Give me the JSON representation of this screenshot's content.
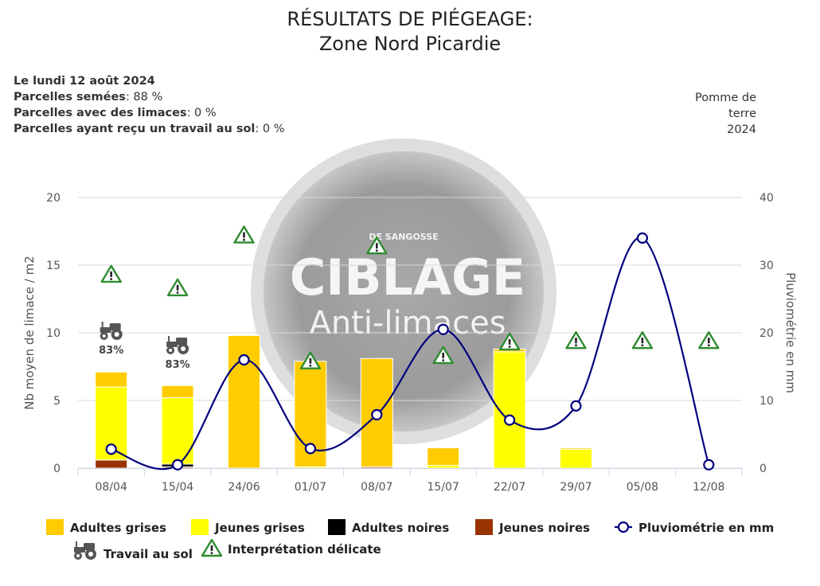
{
  "header": {
    "title_line1": "RÉSULTATS DE PIÉGEAGE:",
    "title_line2": "Zone Nord Picardie"
  },
  "info": {
    "date": "Le lundi 12 août 2024",
    "sown_label": "Parcelles semées",
    "sown_value": ": 88 %",
    "slugs_label": "Parcelles avec des limaces",
    "slugs_value": ": 0 %",
    "soilwork_label": "Parcelles ayant reçu un travail au sol",
    "soilwork_value": ": 0 %"
  },
  "crop": {
    "line1": "Pomme de",
    "line2": "terre",
    "line3": "2024"
  },
  "watermark": {
    "brand": "DE SANGOSSE",
    "line1": "CIBLAGE",
    "line2": "Anti-limaces"
  },
  "chart_data": {
    "type": "bar",
    "categories": [
      "08/04",
      "15/04",
      "24/06",
      "01/07",
      "08/07",
      "15/07",
      "22/07",
      "29/07",
      "05/08",
      "12/08"
    ],
    "ylabel": "Nb moyen de limace / m2",
    "y2label": "Pluviométrie en mm",
    "ylim": [
      0,
      20
    ],
    "y2lim": [
      0,
      40
    ],
    "yticks": [
      "0",
      "5",
      "10",
      "15",
      "20"
    ],
    "y2ticks": [
      "0",
      "10",
      "20",
      "30",
      "40"
    ],
    "stacked": true,
    "series": [
      {
        "name": "Jeunes noires",
        "color": "#993300",
        "values": [
          0.6,
          0.1,
          0,
          0,
          0.1,
          0,
          0,
          0,
          0,
          0
        ]
      },
      {
        "name": "Adultes noires",
        "color": "#000000",
        "values": [
          0,
          0.2,
          0,
          0,
          0,
          0,
          0,
          0,
          0,
          0
        ]
      },
      {
        "name": "Jeunes grises",
        "color": "#FFFF00",
        "values": [
          5.4,
          4.9,
          0,
          0.1,
          0,
          0.2,
          8.6,
          1.4,
          0,
          0
        ]
      },
      {
        "name": "Adultes grises",
        "color": "#FFCC00",
        "values": [
          1.1,
          0.9,
          9.8,
          7.8,
          8.0,
          1.3,
          0.2,
          0.1,
          0,
          0
        ]
      }
    ],
    "line_series": {
      "name": "Pluviométrie en mm",
      "color": "#000080",
      "axis": "right",
      "values": [
        2.8,
        0.5,
        16,
        2.9,
        7.9,
        20.5,
        7.1,
        9.2,
        34,
        0.5
      ]
    },
    "travail_au_sol": [
      {
        "category": "08/04",
        "value": "83%"
      },
      {
        "category": "15/04",
        "value": "83%"
      }
    ],
    "interpretation_delicate_markers": [
      14.3,
      13.3,
      17.2,
      7.9,
      16.4,
      8.3,
      9.3,
      9.4,
      9.4,
      9.4
    ],
    "legend": [
      {
        "label": "Adultes grises",
        "kind": "box",
        "color": "#FFCC00"
      },
      {
        "label": "Jeunes grises",
        "kind": "box",
        "color": "#FFFF00"
      },
      {
        "label": "Adultes noires",
        "kind": "box",
        "color": "#000000"
      },
      {
        "label": "Jeunes noires",
        "kind": "box",
        "color": "#993300"
      },
      {
        "label": "Pluviométrie en mm",
        "kind": "line",
        "color": "#000080"
      },
      {
        "label": "Travail au sol",
        "kind": "tractor",
        "color": "#444444"
      },
      {
        "label": "Interprétation délicate",
        "kind": "warning",
        "color": "#2E8B2E"
      }
    ]
  }
}
